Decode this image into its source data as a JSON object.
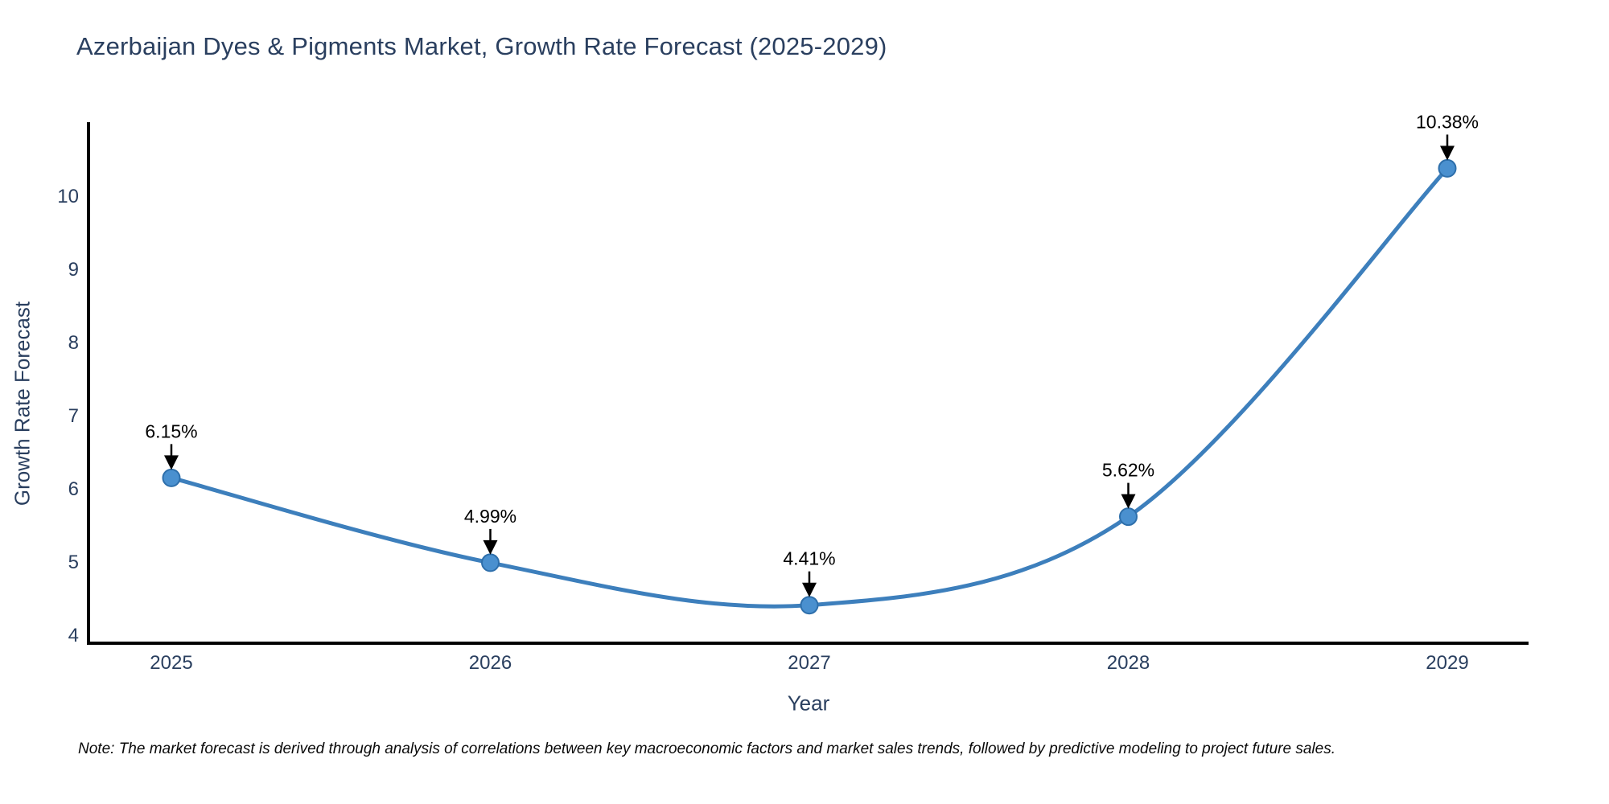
{
  "page": {
    "background": "#ffffff"
  },
  "chart_data": {
    "type": "line",
    "title": "Azerbaijan Dyes & Pigments Market, Growth Rate Forecast (2025-2029)",
    "xlabel": "Year",
    "ylabel": "Growth Rate Forecast",
    "categories": [
      "2025",
      "2026",
      "2027",
      "2028",
      "2029"
    ],
    "values": [
      6.15,
      4.99,
      4.41,
      5.62,
      10.38
    ],
    "point_labels": [
      "6.15%",
      "4.99%",
      "4.41%",
      "5.62%",
      "10.38%"
    ],
    "yticks": [
      4,
      5,
      6,
      7,
      8,
      9,
      10
    ],
    "ylim": [
      3.9,
      11.0
    ],
    "line_shape": "spline",
    "grid": false,
    "legend": "none",
    "annotation_style": "black-down-arrows",
    "colors": {
      "line": "#3d7fbc",
      "marker_fill": "#4a90cf",
      "marker_edge": "#2e6fab",
      "axis": "#000000",
      "tick_text": "#2a3f5f",
      "title_text": "#2a3f5f",
      "annotation": "#000000"
    }
  },
  "note": "Note: The market forecast is derived through analysis of correlations between key macroeconomic factors and market sales trends, followed by predictive modeling to project future sales."
}
